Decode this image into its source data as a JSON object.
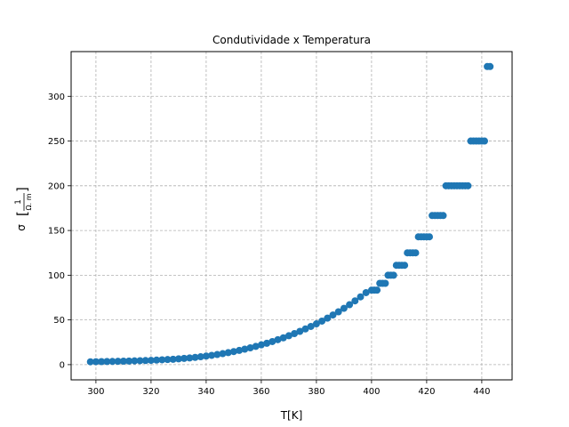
{
  "chart_data": {
    "type": "scatter",
    "title": "Condutividade x Temperatura",
    "xlabel": "T[K]",
    "ylabel": {
      "symbol": "σ",
      "numerator": "1",
      "denominator": "Ω. m"
    },
    "xlim": [
      291,
      451
    ],
    "ylim": [
      -17,
      350
    ],
    "xticks": [
      300,
      320,
      340,
      360,
      380,
      400,
      420,
      440
    ],
    "yticks": [
      0,
      50,
      100,
      150,
      200,
      250,
      300
    ],
    "grid": true,
    "marker_color": "#1f77b4",
    "series": [
      {
        "x": [
          298,
          300,
          302,
          304,
          306,
          308,
          310,
          312,
          314,
          316,
          318,
          320,
          322,
          324,
          326,
          328,
          330,
          332,
          334,
          336,
          338,
          340,
          342,
          344,
          346,
          348,
          350,
          352,
          354,
          356,
          358,
          360,
          362,
          364,
          366,
          368,
          370,
          372,
          374,
          376,
          378,
          380,
          382,
          384,
          386,
          388,
          390,
          392,
          394,
          396,
          398,
          400,
          401,
          402,
          403,
          404,
          405,
          406,
          407,
          408,
          409,
          410,
          411,
          412,
          413,
          414,
          415,
          416,
          417,
          418,
          419,
          420,
          421,
          422,
          423,
          424,
          425,
          426,
          427,
          428,
          429,
          430,
          431,
          432,
          433,
          434,
          435,
          436,
          437,
          438,
          439,
          440,
          441,
          442,
          443
        ],
        "y": [
          3.2,
          3.3,
          3.4,
          3.5,
          3.6,
          3.7,
          3.9,
          4.0,
          4.2,
          4.4,
          4.6,
          4.8,
          5.1,
          5.4,
          5.7,
          6.0,
          6.5,
          7.0,
          7.5,
          8.1,
          8.8,
          9.6,
          10.4,
          11.3,
          12.3,
          13.4,
          14.6,
          15.9,
          17.3,
          18.8,
          20.4,
          22.1,
          23.9,
          25.8,
          27.9,
          30.0,
          32.3,
          34.7,
          37.2,
          39.9,
          42.7,
          45.6,
          48.7,
          52.0,
          55.5,
          59.1,
          63.0,
          67.0,
          71.3,
          75.8,
          80.5,
          83.3,
          83.3,
          83.3,
          90.9,
          90.9,
          90.9,
          100,
          100,
          100,
          111.1,
          111.1,
          111.1,
          111.1,
          125,
          125,
          125,
          125,
          142.9,
          142.9,
          142.9,
          142.9,
          142.9,
          166.7,
          166.7,
          166.7,
          166.7,
          166.7,
          200,
          200,
          200,
          200,
          200,
          200,
          200,
          200,
          200,
          250,
          250,
          250,
          250,
          250,
          250,
          333.3,
          333.3
        ]
      }
    ]
  }
}
